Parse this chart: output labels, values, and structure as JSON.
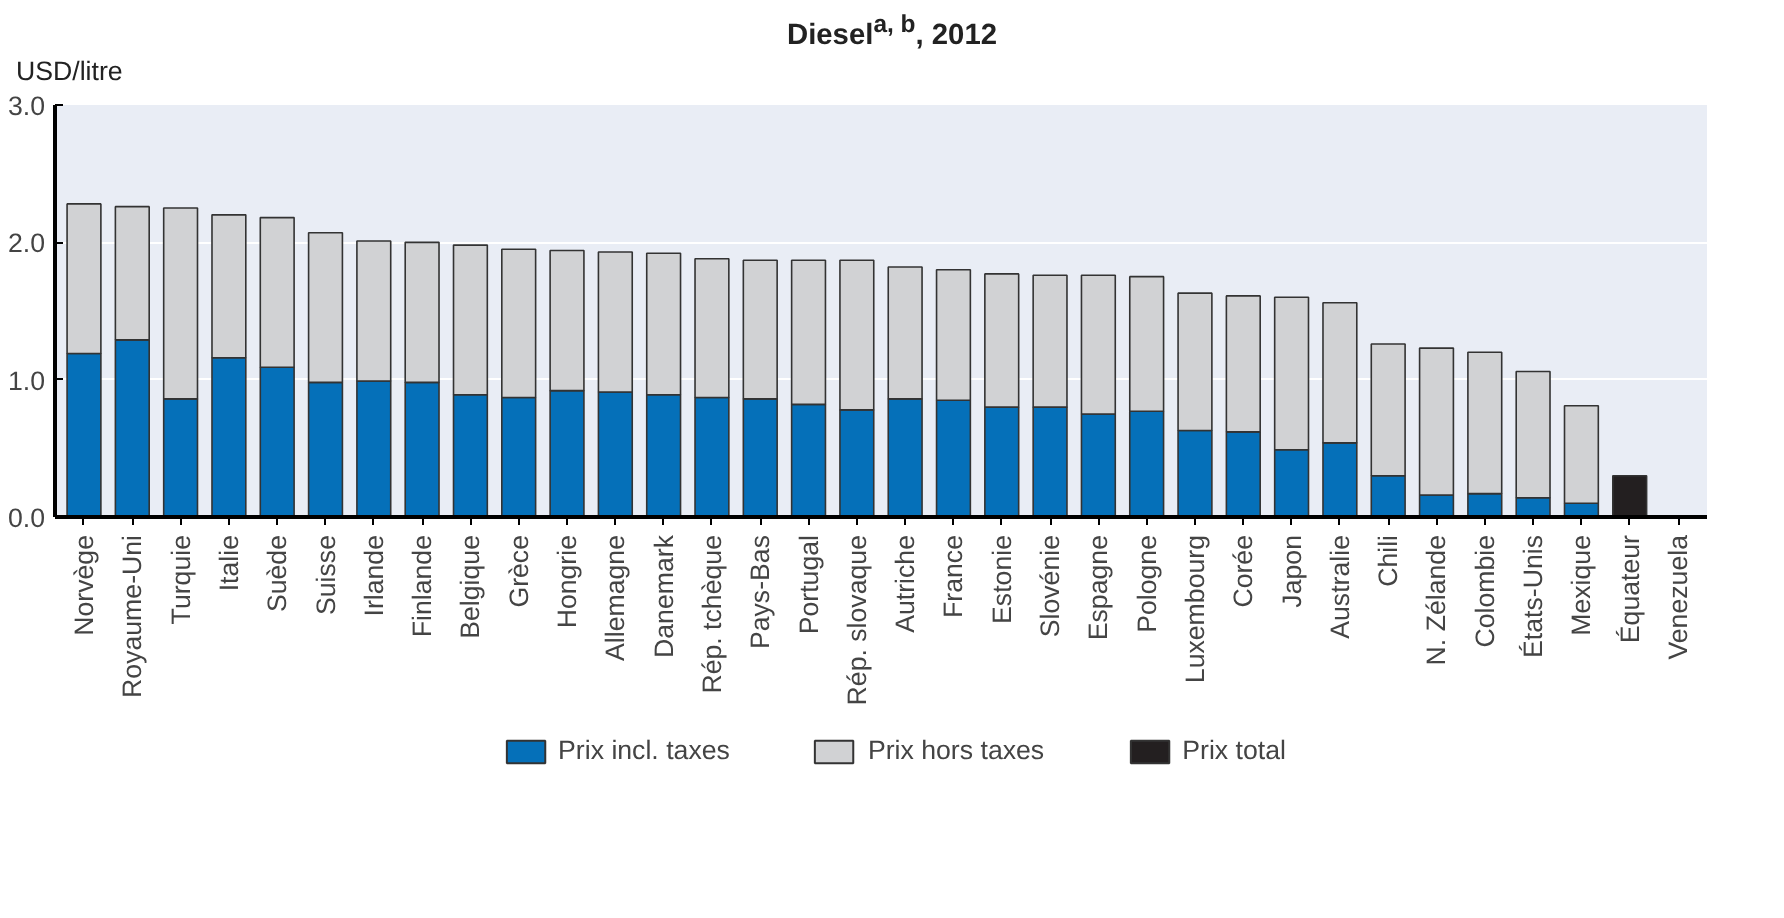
{
  "chart_data": {
    "type": "bar",
    "title": "Diesel$^{a, b}$, 2012",
    "ylabel": "USD/litre",
    "stacked": true,
    "categories": [
      "Norvège",
      "Royaume-Uni",
      "Turquie",
      "Italie",
      "Suède",
      "Suisse",
      "Irlande",
      "Finlande",
      "Belgique",
      "Grèce",
      "Hongrie",
      "Allemagne",
      "Danemark",
      "Rép. tchèque",
      "Pays-Bas",
      "Portugal",
      "Rép. slovaque",
      "Autriche",
      "France",
      "Estonie",
      "Slovénie",
      "Espagne",
      "Pologne",
      "Luxembourg",
      "Corée",
      "Japon",
      "Australie",
      "Chili",
      "N. Zélande",
      "Colombie",
      "États-Unis",
      "Mexique",
      "Équateur",
      "Venezuela"
    ],
    "series": [
      {
        "name": "Prix incl. taxes",
        "color": "#0570b9",
        "values": [
          1.19,
          1.29,
          0.86,
          1.16,
          1.09,
          0.98,
          0.99,
          0.98,
          0.89,
          0.87,
          0.92,
          0.91,
          0.89,
          0.87,
          0.86,
          0.82,
          0.78,
          0.86,
          0.85,
          0.8,
          0.8,
          0.75,
          0.77,
          0.63,
          0.62,
          0.49,
          0.54,
          0.3,
          0.16,
          0.17,
          0.14,
          0.1,
          null,
          null
        ]
      },
      {
        "name": "Prix hors taxes",
        "color": "#d1d2d4",
        "values": [
          1.09,
          0.97,
          1.39,
          1.04,
          1.09,
          1.09,
          1.02,
          1.02,
          1.09,
          1.08,
          1.02,
          1.02,
          1.03,
          1.01,
          1.01,
          1.05,
          1.09,
          0.96,
          0.95,
          0.97,
          0.96,
          1.01,
          0.98,
          1.0,
          0.99,
          1.11,
          1.02,
          0.96,
          1.07,
          1.03,
          0.92,
          0.71,
          null,
          null
        ]
      },
      {
        "name": "Prix total",
        "color": "#231f20",
        "values": [
          null,
          null,
          null,
          null,
          null,
          null,
          null,
          null,
          null,
          null,
          null,
          null,
          null,
          null,
          null,
          null,
          null,
          null,
          null,
          null,
          null,
          null,
          null,
          null,
          null,
          null,
          null,
          null,
          null,
          null,
          null,
          null,
          0.3,
          null
        ]
      }
    ],
    "ylim": [
      0,
      3
    ],
    "yticks": [
      {
        "value": 0,
        "label": "0.0"
      },
      {
        "value": 1,
        "label": "1.0"
      },
      {
        "value": 2,
        "label": "2.0"
      },
      {
        "value": 3,
        "label": "3.0"
      }
    ],
    "grid": "y",
    "legend": "bottom"
  }
}
